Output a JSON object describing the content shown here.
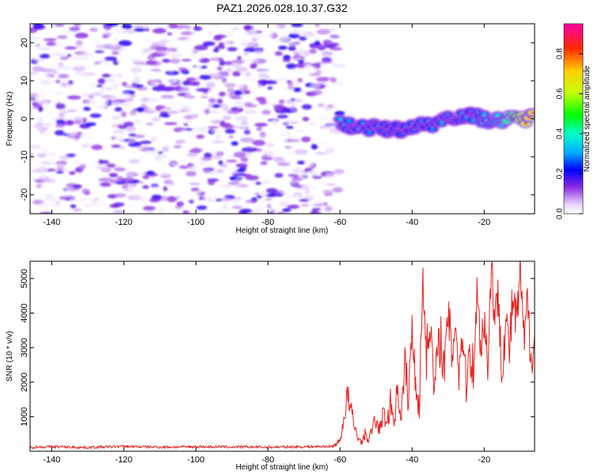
{
  "title": "PAZ1.2026.028.10.37.G32",
  "colors": {
    "snr_line": "#e8201e",
    "spectrogram_low": "#d9c4fb",
    "spectrogram_mid": "#7a2ce0",
    "frame": "#000000"
  },
  "chart_data": [
    {
      "type": "heatmap",
      "xlabel": "Height of straight line (km)",
      "ylabel": "Frequency (Hz)",
      "xlim": [
        -146,
        -6
      ],
      "ylim": [
        -25,
        25
      ],
      "xticks": [
        -140,
        -120,
        -100,
        -80,
        -60,
        -40,
        -20
      ],
      "yticks": [
        -20,
        -10,
        0,
        10,
        20
      ],
      "xtick_labels": [
        "-140",
        "-120",
        "-100",
        "-80",
        "-60",
        "-40",
        "-20"
      ],
      "ytick_labels": [
        "-20",
        "-10",
        "0",
        "10",
        "20"
      ],
      "colorbar": {
        "label": "Normalized spectral amplitude",
        "range": [
          0,
          0.95
        ],
        "ticks": [
          0.0,
          0.2,
          0.4,
          0.6,
          0.8
        ],
        "tick_labels": [
          "0.0",
          "0.2",
          "0.4",
          "0.6",
          "0.8"
        ],
        "colormap": "rainbow (white-violet-blue-cyan-green-yellow-red-magenta)"
      },
      "noise_region": {
        "x_range": [
          -146,
          -60
        ],
        "frequency_range": [
          -25,
          25
        ],
        "amplitude_range": [
          0.0,
          0.2
        ]
      },
      "signal_track": {
        "x": [
          -60,
          -55,
          -50,
          -45,
          -40,
          -35,
          -30,
          -25,
          -20,
          -15,
          -10,
          -6
        ],
        "frequency": [
          -1.5,
          -2.0,
          -2.5,
          -3.0,
          -2.0,
          -1.5,
          0.5,
          1.0,
          0.0,
          -0.5,
          0.0,
          0.5
        ],
        "amplitude": [
          0.35,
          0.3,
          0.3,
          0.25,
          0.3,
          0.3,
          0.35,
          0.3,
          0.35,
          0.4,
          0.8,
          0.95
        ]
      }
    },
    {
      "type": "line",
      "xlabel": "Height of straight line (km)",
      "ylabel": "SNR (10 * v/v)",
      "xlim": [
        -146,
        -6
      ],
      "ylim": [
        0,
        5500
      ],
      "xticks": [
        -140,
        -120,
        -100,
        -80,
        -60,
        -40,
        -20
      ],
      "yticks": [
        1000,
        2000,
        3000,
        4000,
        5000
      ],
      "xtick_labels": [
        "-140",
        "-120",
        "-100",
        "-80",
        "-60",
        "-40",
        "-20"
      ],
      "ytick_labels": [
        "1000",
        "2000",
        "3000",
        "4000",
        "5000"
      ],
      "series": [
        {
          "x": [
            -146,
            -140,
            -130,
            -120,
            -110,
            -100,
            -90,
            -80,
            -70,
            -62,
            -60,
            -59,
            -58,
            -57,
            -56,
            -55,
            -54,
            -53,
            -52,
            -51,
            -50,
            -49,
            -48,
            -47,
            -46,
            -45,
            -44,
            -43,
            -42,
            -41,
            -40,
            -39,
            -38,
            -37,
            -36,
            -35,
            -34,
            -33,
            -32,
            -31,
            -30,
            -29,
            -28,
            -27,
            -26,
            -25,
            -24,
            -23,
            -22,
            -21,
            -20,
            -19,
            -18,
            -17,
            -16,
            -15,
            -14,
            -13,
            -12,
            -11,
            -10,
            -9,
            -8,
            -7,
            -6
          ],
          "values": [
            120,
            130,
            110,
            140,
            120,
            130,
            125,
            120,
            130,
            140,
            300,
            900,
            1600,
            1200,
            700,
            400,
            250,
            500,
            300,
            700,
            900,
            600,
            1100,
            800,
            1400,
            900,
            1800,
            1000,
            2500,
            1500,
            3500,
            2100,
            1200,
            5100,
            2800,
            3900,
            1800,
            2600,
            3400,
            2200,
            4100,
            2700,
            3900,
            2300,
            3500,
            1900,
            3000,
            2400,
            4500,
            3200,
            3800,
            2600,
            5400,
            3900,
            4400,
            2400,
            3800,
            2900,
            4500,
            3600,
            5200,
            3100,
            4200,
            2800,
            3400
          ]
        }
      ]
    }
  ]
}
